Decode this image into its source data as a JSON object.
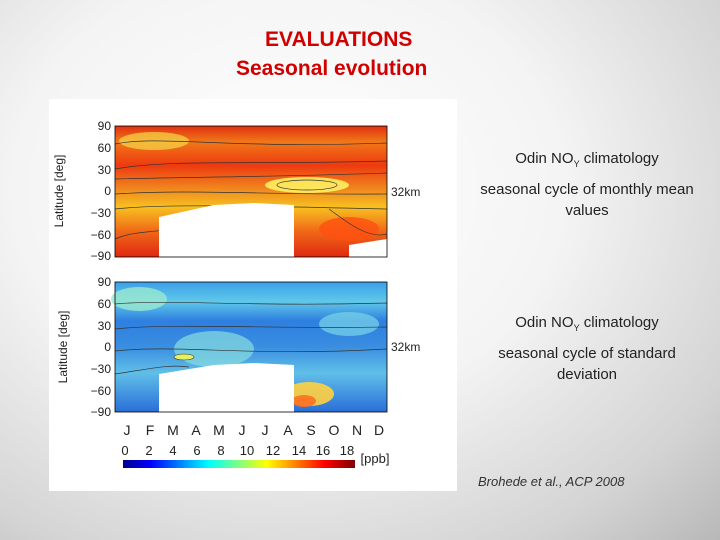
{
  "title": {
    "line1": "EVALUATIONS",
    "line2": "Seasonal evolution"
  },
  "figure": {
    "y_axis_label": "Latitude [deg]",
    "y_ticks": [
      "90",
      "60",
      "30",
      "0",
      "−30",
      "−60",
      "−90"
    ],
    "altitude_label": "32km",
    "month_labels": [
      "J",
      "F",
      "M",
      "A",
      "M",
      "J",
      "J",
      "A",
      "S",
      "O",
      "N",
      "D"
    ],
    "colorbar_ticks": [
      "0",
      "2",
      "4",
      "6",
      "8",
      "10",
      "12",
      "14",
      "16",
      "18"
    ],
    "colorbar_unit": "[ppb]"
  },
  "panel1": {
    "name_prefix": "Odin NO",
    "name_sub": "Y",
    "name_suffix": " climatology",
    "caption": "seasonal cycle of monthly mean values"
  },
  "panel2": {
    "name_prefix": "Odin NO",
    "name_sub": "Y",
    "name_suffix": " climatology",
    "caption": "seasonal cycle of standard deviation"
  },
  "reference": "Brohede et al., ACP 2008",
  "colors": {
    "title": "#d00000"
  }
}
